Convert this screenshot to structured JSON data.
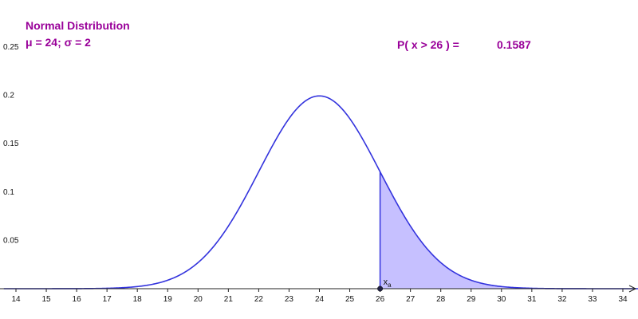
{
  "header": {
    "title": "Normal Distribution",
    "params": "μ = 24; σ = 2"
  },
  "probability": {
    "label": "P( x > 26 ) =",
    "value": "0.1587"
  },
  "point": {
    "label": "x",
    "subscript": "a"
  },
  "colors": {
    "curve": "#3333dd",
    "fill": "#c6c0ff",
    "text_accent": "#990099",
    "axis": "#222222"
  },
  "chart_data": {
    "type": "area",
    "distribution": "normal",
    "mean": 24,
    "sd": 2,
    "shaded_region": {
      "from": 26,
      "to": "+inf",
      "probability": 0.1587
    },
    "x_ticks": [
      14,
      15,
      16,
      17,
      18,
      19,
      20,
      21,
      22,
      23,
      24,
      25,
      26,
      27,
      28,
      29,
      30,
      31,
      32,
      33,
      34
    ],
    "y_ticks": [
      0.05,
      0.1,
      0.15,
      0.2,
      0.25
    ],
    "y_tick_labels": [
      "0.05",
      "0.1",
      "0.15",
      "0.2",
      "0.25"
    ],
    "xlim": [
      13.6,
      34.6
    ],
    "ylim": [
      0,
      0.25
    ],
    "grid": false,
    "title": "Normal Distribution"
  }
}
